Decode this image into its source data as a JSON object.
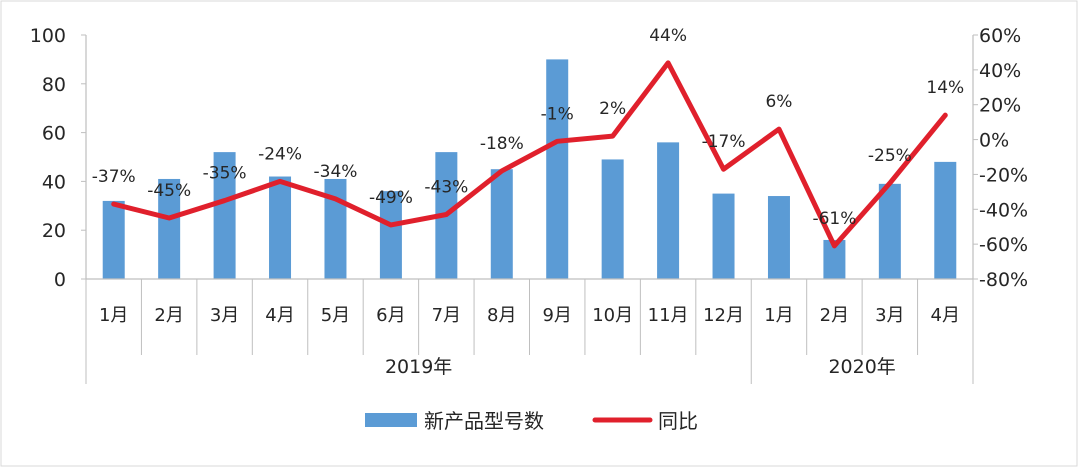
{
  "chart_data": {
    "type": "bar+line",
    "categories": [
      "1月",
      "2月",
      "3月",
      "4月",
      "5月",
      "6月",
      "7月",
      "8月",
      "9月",
      "10月",
      "11月",
      "12月",
      "1月",
      "2月",
      "3月",
      "4月"
    ],
    "year_groups": [
      {
        "label": "2019年",
        "start": 0,
        "count": 12
      },
      {
        "label": "2020年",
        "start": 12,
        "count": 4
      }
    ],
    "series": [
      {
        "name": "新产品型号数",
        "type": "bar",
        "axis": "left",
        "color": "#5B9BD5",
        "values": [
          32,
          41,
          52,
          42,
          41,
          36,
          52,
          45,
          90,
          49,
          56,
          35,
          34,
          16,
          39,
          48
        ]
      },
      {
        "name": "同比",
        "type": "line",
        "axis": "right",
        "color": "#E0202C",
        "values": [
          -37,
          -45,
          -35,
          -24,
          -34,
          -49,
          -43,
          -18,
          -1,
          2,
          44,
          -17,
          6,
          -61,
          -25,
          14
        ],
        "labels": [
          "-37%",
          "-45%",
          "-35%",
          "-24%",
          "-34%",
          "-49%",
          "-43%",
          "-18%",
          "-1%",
          "2%",
          "44%",
          "-17%",
          "6%",
          "-61%",
          "-25%",
          "14%"
        ]
      }
    ],
    "y_left": {
      "min": 0,
      "max": 100,
      "ticks": [
        "0",
        "20",
        "40",
        "60",
        "80",
        "100"
      ]
    },
    "y_right": {
      "min": -80,
      "max": 60,
      "ticks": [
        "-80%",
        "-60%",
        "-40%",
        "-20%",
        "0%",
        "20%",
        "40%",
        "60%"
      ]
    },
    "legend_position": "bottom",
    "grid": false
  }
}
